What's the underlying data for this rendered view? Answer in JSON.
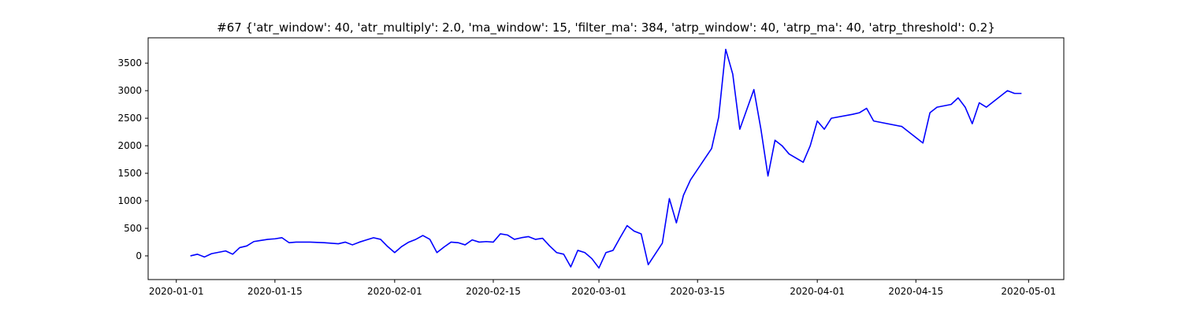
{
  "chart_data": {
    "type": "line",
    "title": "#67 {'atr_window': 40, 'atr_multiply': 2.0, 'ma_window': 15, 'filter_ma': 384, 'atrp_window': 40, 'atrp_ma': 40, 'atrp_threshold': 0.2}",
    "color": "#0000ff",
    "x": [
      "2020-01-03",
      "2020-01-04",
      "2020-01-05",
      "2020-01-06",
      "2020-01-08",
      "2020-01-09",
      "2020-01-10",
      "2020-01-11",
      "2020-01-12",
      "2020-01-13",
      "2020-01-14",
      "2020-01-15",
      "2020-01-16",
      "2020-01-17",
      "2020-01-18",
      "2020-01-20",
      "2020-01-22",
      "2020-01-24",
      "2020-01-25",
      "2020-01-26",
      "2020-01-27",
      "2020-01-28",
      "2020-01-29",
      "2020-01-30",
      "2020-01-31",
      "2020-02-01",
      "2020-02-02",
      "2020-02-03",
      "2020-02-04",
      "2020-02-05",
      "2020-02-06",
      "2020-02-07",
      "2020-02-08",
      "2020-02-09",
      "2020-02-10",
      "2020-02-11",
      "2020-02-12",
      "2020-02-13",
      "2020-02-14",
      "2020-02-15",
      "2020-02-16",
      "2020-02-17",
      "2020-02-18",
      "2020-02-19",
      "2020-02-20",
      "2020-02-21",
      "2020-02-22",
      "2020-02-23",
      "2020-02-24",
      "2020-02-25",
      "2020-02-26",
      "2020-02-27",
      "2020-02-28",
      "2020-02-29",
      "2020-03-01",
      "2020-03-02",
      "2020-03-03",
      "2020-03-04",
      "2020-03-05",
      "2020-03-06",
      "2020-03-07",
      "2020-03-08",
      "2020-03-10",
      "2020-03-11",
      "2020-03-12",
      "2020-03-13",
      "2020-03-14",
      "2020-03-17",
      "2020-03-18",
      "2020-03-19",
      "2020-03-20",
      "2020-03-21",
      "2020-03-23",
      "2020-03-24",
      "2020-03-25",
      "2020-03-26",
      "2020-03-27",
      "2020-03-28",
      "2020-03-30",
      "2020-03-31",
      "2020-04-01",
      "2020-04-02",
      "2020-04-03",
      "2020-04-06",
      "2020-04-07",
      "2020-04-08",
      "2020-04-09",
      "2020-04-13",
      "2020-04-15",
      "2020-04-16",
      "2020-04-17",
      "2020-04-18",
      "2020-04-20",
      "2020-04-21",
      "2020-04-22",
      "2020-04-23",
      "2020-04-24",
      "2020-04-25",
      "2020-04-28",
      "2020-04-29",
      "2020-04-30"
    ],
    "values": [
      0,
      30,
      -20,
      40,
      90,
      30,
      150,
      180,
      260,
      280,
      300,
      310,
      330,
      240,
      250,
      250,
      240,
      220,
      250,
      200,
      250,
      290,
      330,
      300,
      170,
      60,
      170,
      250,
      300,
      370,
      300,
      60,
      160,
      250,
      240,
      200,
      290,
      250,
      260,
      250,
      400,
      380,
      300,
      330,
      350,
      300,
      320,
      180,
      60,
      30,
      -200,
      100,
      60,
      -50,
      -220,
      60,
      100,
      330,
      550,
      450,
      400,
      -160,
      230,
      1040,
      600,
      1100,
      1380,
      1950,
      2520,
      3750,
      3300,
      2300,
      3020,
      2300,
      1450,
      2100,
      2000,
      1850,
      1700,
      2000,
      2450,
      2300,
      2500,
      2570,
      2600,
      2680,
      2450,
      2350,
      2150,
      2050,
      2600,
      2700,
      2750,
      2870,
      2700,
      2400,
      2780,
      2700,
      3000,
      2950,
      2950
    ],
    "xlim": [
      "2019-12-28",
      "2020-05-06"
    ],
    "xticks": [
      "2020-01-01",
      "2020-01-15",
      "2020-02-01",
      "2020-02-15",
      "2020-03-01",
      "2020-03-15",
      "2020-04-01",
      "2020-04-15",
      "2020-05-01"
    ],
    "ylim": [
      -430,
      3960
    ],
    "yticks": [
      0,
      500,
      1000,
      1500,
      2000,
      2500,
      3000,
      3500
    ]
  }
}
